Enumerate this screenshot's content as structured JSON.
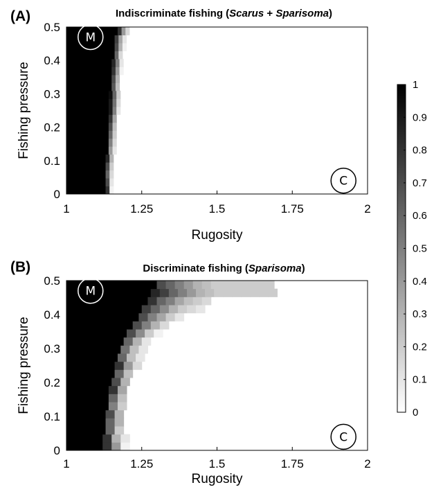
{
  "chart_data": [
    {
      "type": "heatmap",
      "panel_label": "(A)",
      "title_parts": [
        {
          "text": "Indiscriminate fishing (",
          "italic": false
        },
        {
          "text": "Scarus",
          "italic": true
        },
        {
          "text": " + ",
          "italic": false
        },
        {
          "text": "Sparisoma",
          "italic": true
        },
        {
          "text": ")",
          "italic": false
        }
      ],
      "xlabel": "Rugosity",
      "ylabel": "Fishing pressure",
      "xlim": [
        1,
        2
      ],
      "ylim": [
        0,
        0.5
      ],
      "xticks": [
        "1",
        "1.25",
        "1.5",
        "1.75",
        "2"
      ],
      "yticks": [
        "0",
        "0.1",
        "0.2",
        "0.3",
        "0.4",
        "0.5"
      ],
      "marker_M": {
        "label": "M",
        "x": 1.08,
        "y": 0.47
      },
      "marker_C": {
        "label": "C",
        "x": 1.92,
        "y": 0.04
      },
      "rows": [
        {
          "y": 0.0,
          "x_start": 1.13,
          "values": [
            0.8,
            0.05
          ]
        },
        {
          "y": 0.025,
          "x_start": 1.13,
          "values": [
            0.7,
            0.1
          ]
        },
        {
          "y": 0.05,
          "x_start": 1.13,
          "values": [
            0.6,
            0.15
          ]
        },
        {
          "y": 0.075,
          "x_start": 1.13,
          "values": [
            0.7,
            0.2
          ]
        },
        {
          "y": 0.1,
          "x_start": 1.13,
          "values": [
            0.85,
            0.3
          ]
        },
        {
          "y": 0.125,
          "x_start": 1.14,
          "values": [
            0.4,
            0.1
          ]
        },
        {
          "y": 0.15,
          "x_start": 1.14,
          "values": [
            0.5,
            0.15
          ]
        },
        {
          "y": 0.175,
          "x_start": 1.14,
          "values": [
            0.6,
            0.2
          ]
        },
        {
          "y": 0.2,
          "x_start": 1.14,
          "values": [
            0.7,
            0.25
          ]
        },
        {
          "y": 0.225,
          "x_start": 1.14,
          "values": [
            0.8,
            0.35
          ]
        },
        {
          "y": 0.25,
          "x_start": 1.14,
          "values": [
            0.9,
            0.5,
            0.1
          ]
        },
        {
          "y": 0.275,
          "x_start": 1.14,
          "values": [
            0.9,
            0.55,
            0.15
          ]
        },
        {
          "y": 0.3,
          "x_start": 1.14,
          "values": [
            0.95,
            0.6,
            0.2
          ]
        },
        {
          "y": 0.325,
          "x_start": 1.15,
          "values": [
            0.65,
            0.25
          ]
        },
        {
          "y": 0.35,
          "x_start": 1.15,
          "values": [
            0.7,
            0.3
          ]
        },
        {
          "y": 0.375,
          "x_start": 1.15,
          "values": [
            0.8,
            0.4,
            0.05
          ]
        },
        {
          "y": 0.4,
          "x_start": 1.15,
          "values": [
            0.85,
            0.5,
            0.1
          ]
        },
        {
          "y": 0.425,
          "x_start": 1.16,
          "values": [
            0.6,
            0.15
          ]
        },
        {
          "y": 0.45,
          "x_start": 1.16,
          "values": [
            0.7,
            0.3,
            0.05
          ]
        },
        {
          "y": 0.475,
          "x_start": 1.16,
          "values": [
            0.75,
            0.35,
            0.1
          ]
        },
        {
          "y": 0.5,
          "x_start": 1.17,
          "values": [
            0.8,
            0.4,
            0.15
          ]
        }
      ],
      "cell_width": 0.013
    },
    {
      "type": "heatmap",
      "panel_label": "(B)",
      "title_parts": [
        {
          "text": "Discriminate fishing (",
          "italic": false
        },
        {
          "text": "Sparisoma",
          "italic": true
        },
        {
          "text": ")",
          "italic": false
        }
      ],
      "xlabel": "Rugosity",
      "ylabel": "Fishing pressure",
      "xlim": [
        1,
        2
      ],
      "ylim": [
        0,
        0.5
      ],
      "xticks": [
        "1",
        "1.25",
        "1.5",
        "1.75",
        "2"
      ],
      "yticks": [
        "0",
        "0.1",
        "0.2",
        "0.3",
        "0.4",
        "0.5"
      ],
      "marker_M": {
        "label": "M",
        "x": 1.08,
        "y": 0.47
      },
      "marker_C": {
        "label": "C",
        "x": 1.92,
        "y": 0.04
      },
      "rows": [
        {
          "y": 0.0,
          "x_start": 1.12,
          "values": [
            0.8,
            0.4,
            0.05
          ]
        },
        {
          "y": 0.025,
          "x_start": 1.12,
          "values": [
            0.8,
            0.3,
            0.1
          ]
        },
        {
          "y": 0.05,
          "x_start": 1.13,
          "values": [
            0.6,
            0.2
          ]
        },
        {
          "y": 0.075,
          "x_start": 1.13,
          "values": [
            0.6,
            0.3
          ]
        },
        {
          "y": 0.1,
          "x_start": 1.13,
          "values": [
            0.7,
            0.3
          ]
        },
        {
          "y": 0.125,
          "x_start": 1.14,
          "values": [
            0.5,
            0.2
          ]
        },
        {
          "y": 0.15,
          "x_start": 1.14,
          "values": [
            0.6,
            0.25
          ]
        },
        {
          "y": 0.175,
          "x_start": 1.14,
          "values": [
            0.8,
            0.35
          ]
        },
        {
          "y": 0.2,
          "x_start": 1.15,
          "values": [
            0.7,
            0.3
          ]
        },
        {
          "y": 0.225,
          "x_start": 1.16,
          "values": [
            0.6,
            0.25
          ]
        },
        {
          "y": 0.25,
          "x_start": 1.16,
          "values": [
            0.8,
            0.4,
            0.15
          ]
        },
        {
          "y": 0.275,
          "x_start": 1.17,
          "values": [
            0.6,
            0.25,
            0.1
          ]
        },
        {
          "y": 0.3,
          "x_start": 1.18,
          "values": [
            0.55,
            0.25,
            0.1
          ]
        },
        {
          "y": 0.325,
          "x_start": 1.19,
          "values": [
            0.6,
            0.3,
            0.1
          ]
        },
        {
          "y": 0.35,
          "x_start": 1.2,
          "values": [
            0.7,
            0.45,
            0.2,
            0.05
          ]
        },
        {
          "y": 0.375,
          "x_start": 1.22,
          "values": [
            0.7,
            0.5,
            0.3,
            0.15
          ]
        },
        {
          "y": 0.4,
          "x_start": 1.24,
          "values": [
            0.7,
            0.5,
            0.35,
            0.2,
            0.1
          ]
        },
        {
          "y": 0.425,
          "x_start": 1.25,
          "values": [
            0.75,
            0.6,
            0.45,
            0.3,
            0.2,
            0.15,
            0.1
          ]
        },
        {
          "y": 0.45,
          "x_start": 1.27,
          "values": [
            0.8,
            0.6,
            0.5,
            0.35,
            0.25,
            0.2,
            0.15
          ]
        },
        {
          "y": 0.475,
          "x_start": 1.28,
          "values": [
            0.85,
            0.75,
            0.6,
            0.5,
            0.4,
            0.3,
            0.25,
            0.2,
            0.2,
            0.2,
            0.2,
            0.2,
            0.2,
            0.2
          ]
        },
        {
          "y": 0.5,
          "x_start": 1.3,
          "values": [
            0.7,
            0.6,
            0.5,
            0.4,
            0.3,
            0.25,
            0.2,
            0.2,
            0.2,
            0.2,
            0.2,
            0.2,
            0.2
          ]
        }
      ],
      "cell_width": 0.03
    }
  ],
  "colorbar": {
    "ticks": [
      "0",
      "0.1",
      "0.2",
      "0.3",
      "0.4",
      "0.5",
      "0.6",
      "0.7",
      "0.8",
      "0.9",
      "1"
    ],
    "min": 0,
    "max": 1,
    "low_color": "#ffffff",
    "high_color": "#000000"
  }
}
